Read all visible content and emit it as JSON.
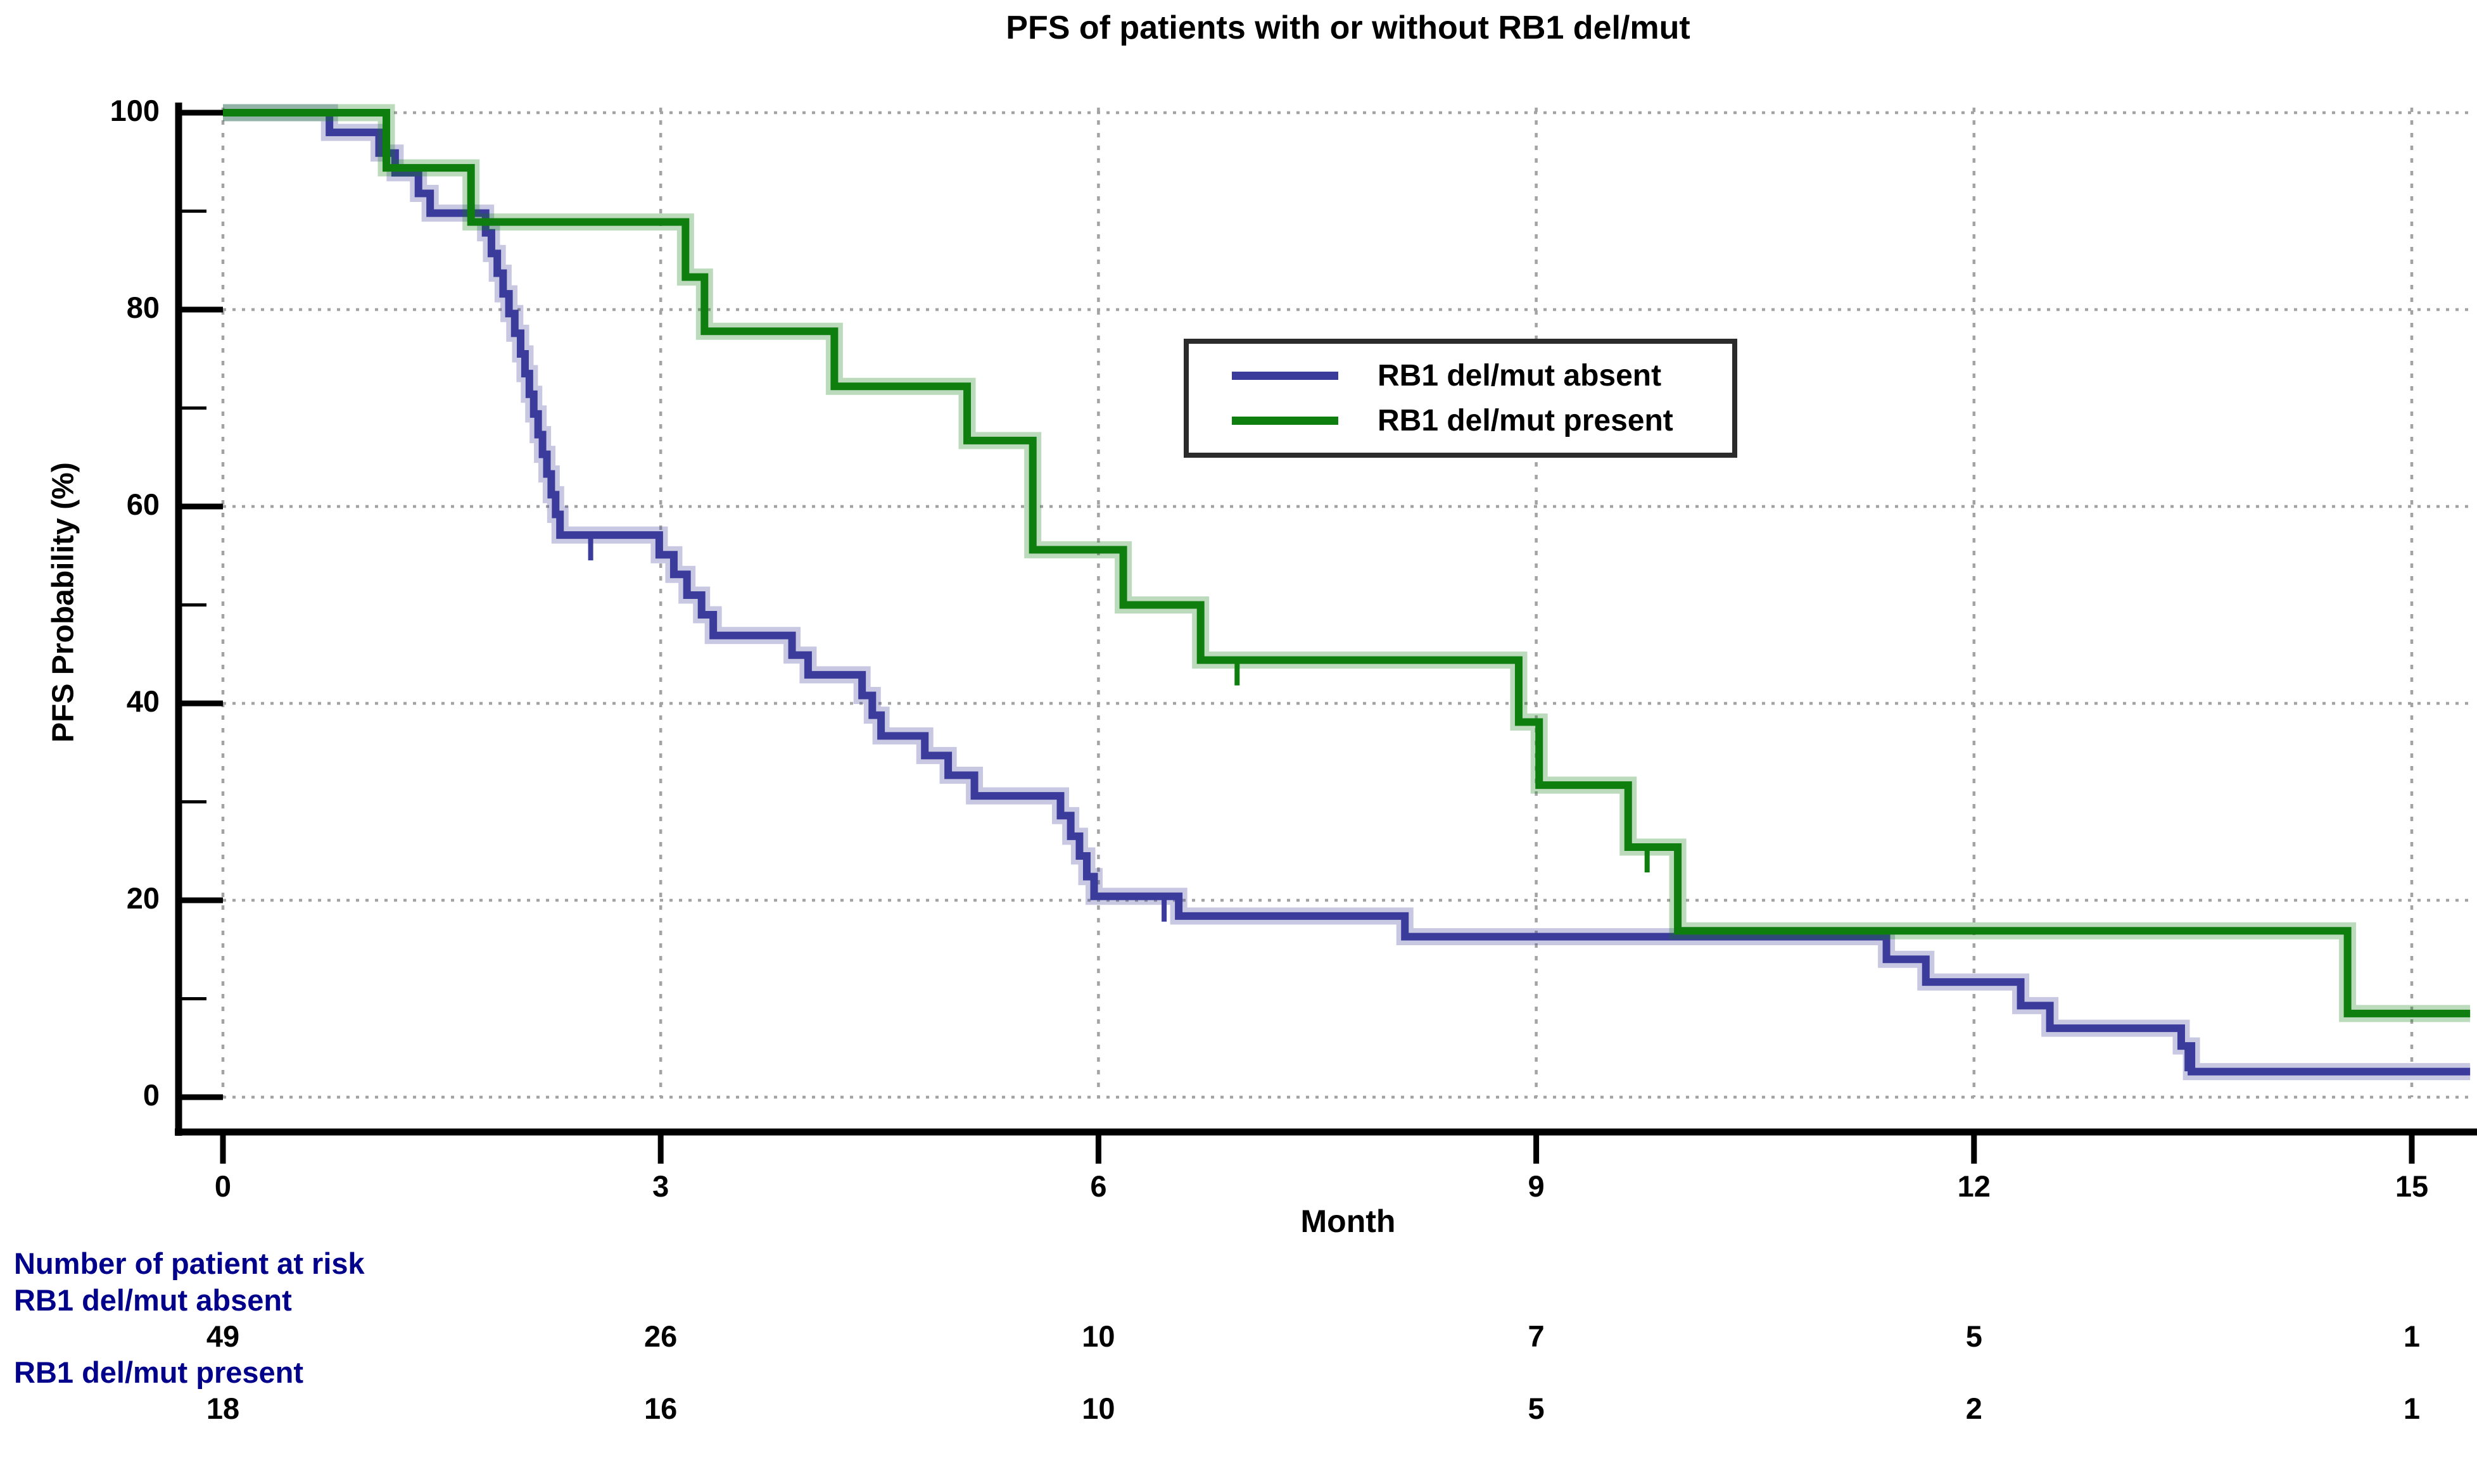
{
  "title": "PFS of patients with or without RB1 del/mut",
  "axes": {
    "x_label": "Month",
    "y_label": "PFS Probability (%)",
    "x_ticks": [
      "0",
      "3",
      "6",
      "9",
      "12",
      "15"
    ],
    "y_ticks": [
      "0",
      "20",
      "40",
      "60",
      "80",
      "100"
    ],
    "y_minor_ticks": [
      10,
      30,
      50,
      70,
      90
    ]
  },
  "legend": {
    "items": [
      {
        "label": "RB1 del/mut absent",
        "color": "#3b3b9c"
      },
      {
        "label": "RB1 del/mut present",
        "color": "#0e7e0e"
      }
    ]
  },
  "risk_table": {
    "header": "Number of patient at risk",
    "rows": [
      {
        "label": "RB1 del/mut absent",
        "counts": [
          "49",
          "26",
          "10",
          "7",
          "5",
          "1"
        ]
      },
      {
        "label": "RB1 del/mut present",
        "counts": [
          "18",
          "16",
          "10",
          "5",
          "2",
          "1"
        ]
      }
    ]
  },
  "colors": {
    "curve_absent": "#3b3b9c",
    "curve_present": "#0e7e0e",
    "grid": "#a3a3a3",
    "axis": "#000000",
    "risk_text": "#00008b",
    "legend_border": "#2b2b2b"
  },
  "chart_data": {
    "type": "line",
    "subtype": "kaplan-meier",
    "title": "PFS of patients with or without RB1 del/mut",
    "xlabel": "Month",
    "ylabel": "PFS Probability (%)",
    "xlim": [
      0,
      15
    ],
    "ylim": [
      0,
      100
    ],
    "grid": true,
    "legend_position": "upper-middle",
    "curve_end_month": 15.4,
    "series": [
      {
        "name": "RB1 del/mut absent",
        "color": "#3b3b9c",
        "n_at_risk": [
          49,
          26,
          10,
          7,
          5,
          1
        ],
        "steps": [
          [
            0,
            100
          ],
          [
            0.73,
            98.0
          ],
          [
            1.07,
            95.9
          ],
          [
            1.18,
            93.9
          ],
          [
            1.34,
            91.8
          ],
          [
            1.42,
            89.8
          ],
          [
            1.8,
            87.8
          ],
          [
            1.84,
            85.7
          ],
          [
            1.88,
            83.7
          ],
          [
            1.92,
            81.6
          ],
          [
            1.96,
            79.6
          ],
          [
            2.0,
            77.6
          ],
          [
            2.04,
            75.5
          ],
          [
            2.07,
            73.5
          ],
          [
            2.1,
            71.4
          ],
          [
            2.13,
            69.4
          ],
          [
            2.16,
            67.3
          ],
          [
            2.19,
            65.3
          ],
          [
            2.22,
            63.3
          ],
          [
            2.25,
            61.2
          ],
          [
            2.28,
            59.2
          ],
          [
            2.31,
            57.1
          ],
          [
            2.99,
            55.1
          ],
          [
            3.09,
            53.1
          ],
          [
            3.18,
            51.0
          ],
          [
            3.28,
            49.0
          ],
          [
            3.36,
            46.9
          ],
          [
            3.9,
            44.9
          ],
          [
            4.01,
            42.9
          ],
          [
            4.38,
            40.8
          ],
          [
            4.45,
            38.8
          ],
          [
            4.51,
            36.7
          ],
          [
            4.81,
            34.7
          ],
          [
            4.97,
            32.7
          ],
          [
            5.15,
            30.6
          ],
          [
            5.74,
            28.6
          ],
          [
            5.81,
            26.5
          ],
          [
            5.87,
            24.5
          ],
          [
            5.92,
            22.4
          ],
          [
            5.97,
            20.4
          ],
          [
            6.55,
            18.4
          ],
          [
            8.1,
            16.3
          ],
          [
            11.4,
            14.0
          ],
          [
            11.67,
            11.7
          ],
          [
            12.32,
            9.3
          ],
          [
            12.52,
            7.0
          ],
          [
            13.42,
            5.2
          ],
          [
            13.49,
            2.6
          ]
        ],
        "censor_marks": [
          [
            2.52,
            57.1
          ],
          [
            6.45,
            20.4
          ],
          [
            13.46,
            5.2
          ]
        ]
      },
      {
        "name": "RB1 del/mut present",
        "color": "#0e7e0e",
        "n_at_risk": [
          18,
          16,
          10,
          5,
          2,
          1
        ],
        "steps": [
          [
            0,
            100
          ],
          [
            1.12,
            94.4
          ],
          [
            1.7,
            88.9
          ],
          [
            3.17,
            83.3
          ],
          [
            3.3,
            77.8
          ],
          [
            4.19,
            72.2
          ],
          [
            5.1,
            66.7
          ],
          [
            5.55,
            55.6
          ],
          [
            6.17,
            50.0
          ],
          [
            6.7,
            44.4
          ],
          [
            8.88,
            38.1
          ],
          [
            9.02,
            31.7
          ],
          [
            9.63,
            25.4
          ],
          [
            9.97,
            16.9
          ],
          [
            14.56,
            8.5
          ]
        ],
        "censor_marks": [
          [
            6.95,
            44.4
          ],
          [
            9.76,
            25.4
          ]
        ]
      }
    ]
  },
  "geometry_note": ""
}
